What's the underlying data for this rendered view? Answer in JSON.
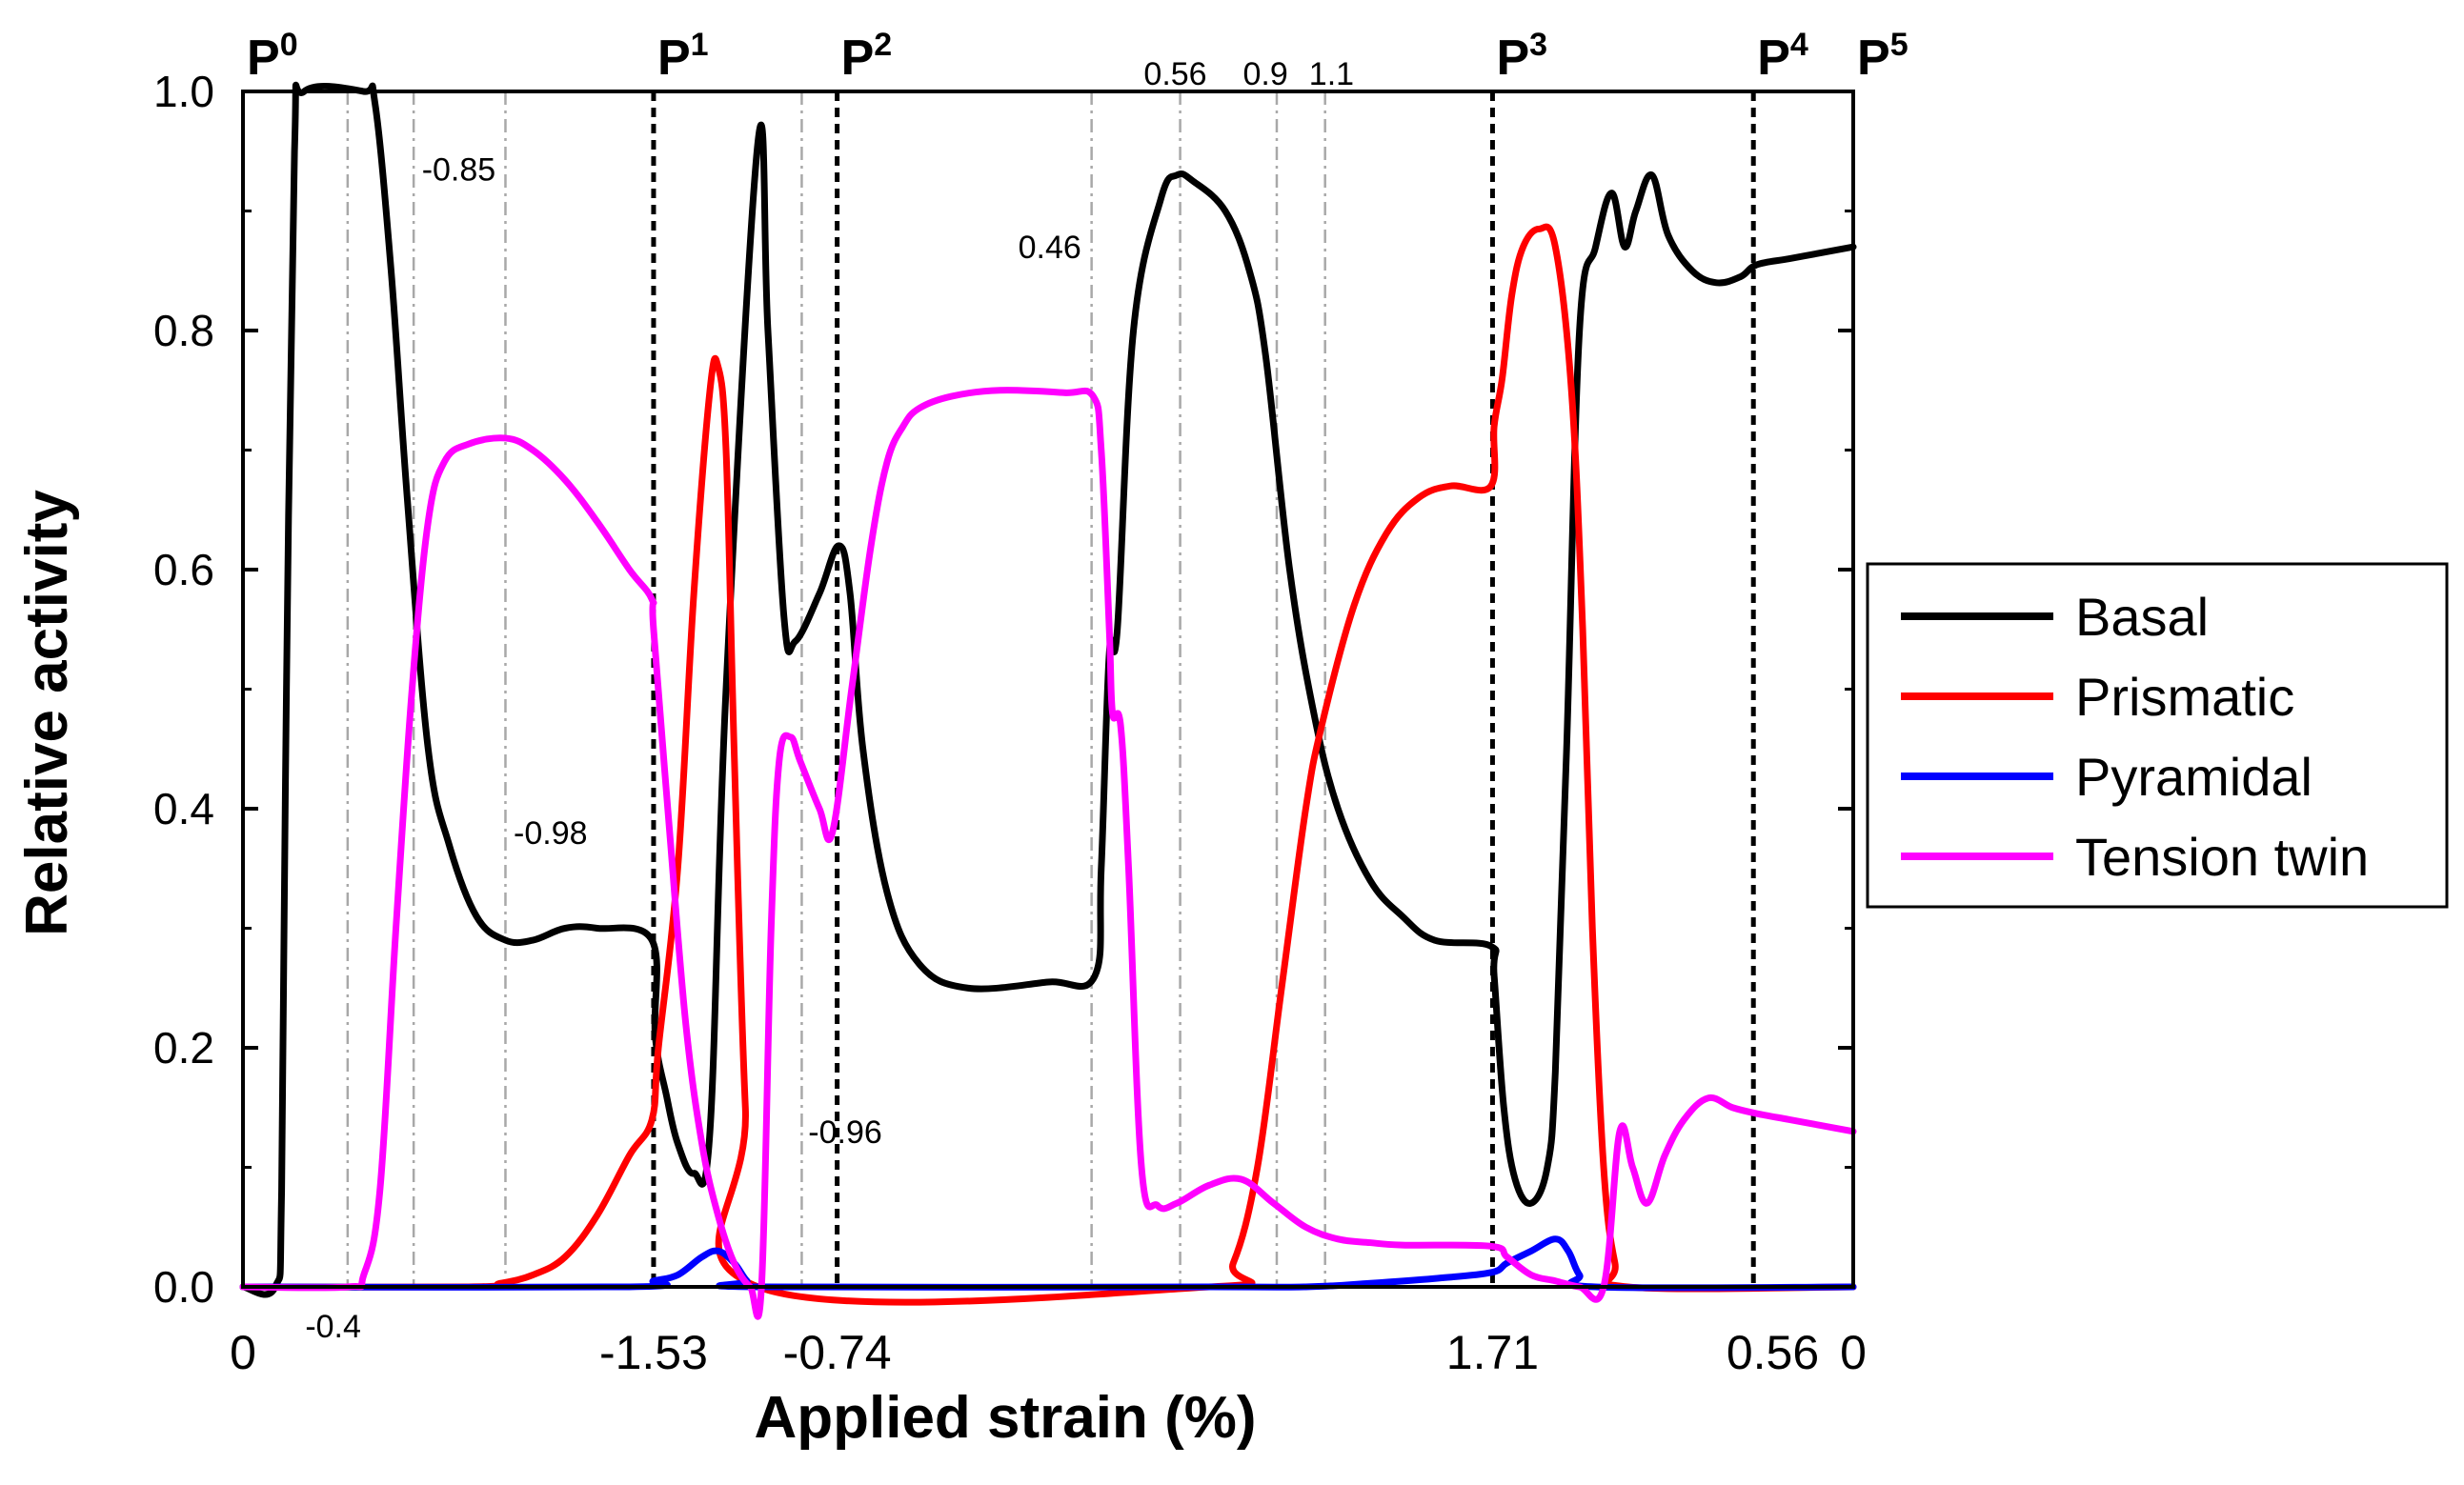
{
  "chart_data": {
    "type": "line",
    "title": "",
    "xlabel": "Applied strain (%)",
    "ylabel": "Relative activity",
    "ylim": [
      0,
      1.0
    ],
    "xlim": [
      0,
      100
    ],
    "x_is_path_progress": true,
    "yticks": [
      "0.0",
      "0.2",
      "0.4",
      "0.6",
      "0.8",
      "1.0"
    ],
    "xtick_labels": [
      {
        "x": 0,
        "label": "0",
        "size": "large"
      },
      {
        "x": 5.6,
        "label": "-0.4",
        "size": "small"
      },
      {
        "x": 25.5,
        "label": "-1.53",
        "size": "large"
      },
      {
        "x": 36.9,
        "label": "-0.74",
        "size": "large"
      },
      {
        "x": 77.6,
        "label": "1.71",
        "size": "large"
      },
      {
        "x": 95.0,
        "label": "0.56",
        "size": "large"
      },
      {
        "x": 100,
        "label": "0",
        "size": "large"
      }
    ],
    "markers": [
      {
        "x": 0,
        "base": "P",
        "sup": "0",
        "line": false
      },
      {
        "x": 25.5,
        "base": "P",
        "sup": "1",
        "line": true
      },
      {
        "x": 36.9,
        "base": "P",
        "sup": "2",
        "line": true
      },
      {
        "x": 77.6,
        "base": "P",
        "sup": "3",
        "line": true
      },
      {
        "x": 93.8,
        "base": "P",
        "sup": "4",
        "line": true
      },
      {
        "x": 100,
        "base": "P",
        "sup": "5",
        "line": false
      }
    ],
    "reference_lines": [
      6.5,
      10.6,
      16.3,
      34.7,
      52.7,
      58.2,
      64.2,
      67.2
    ],
    "annotations": [
      {
        "text": "-0.85",
        "x": 13.4,
        "y": 0.935
      },
      {
        "text": "-0.98",
        "x": 19.1,
        "y": 0.38
      },
      {
        "text": "-0.96",
        "x": 37.4,
        "y": 0.13
      },
      {
        "text": "0.46",
        "x": 50.1,
        "y": 0.87
      },
      {
        "text": "0.56",
        "x": 57.9,
        "y": 1.015
      },
      {
        "text": "0.9",
        "x": 63.5,
        "y": 1.015
      },
      {
        "text": "1.1",
        "x": 67.6,
        "y": 1.015
      }
    ],
    "legend_position": "right",
    "series": [
      {
        "name": "Basal",
        "color": "#000000",
        "points": [
          [
            0,
            0
          ],
          [
            2,
            0
          ],
          [
            2.4,
            0.08
          ],
          [
            2.7,
            0.5
          ],
          [
            3.2,
            0.95
          ],
          [
            3.8,
            1.0
          ],
          [
            7.5,
            1.0
          ],
          [
            8.2,
            0.99
          ],
          [
            9.2,
            0.85
          ],
          [
            10.2,
            0.66
          ],
          [
            11.5,
            0.45
          ],
          [
            12.8,
            0.37
          ],
          [
            14.5,
            0.31
          ],
          [
            16.3,
            0.29
          ],
          [
            18,
            0.29
          ],
          [
            20,
            0.3
          ],
          [
            22,
            0.3
          ],
          [
            25.4,
            0.29
          ],
          [
            25.6,
            0.21
          ],
          [
            26.3,
            0.16
          ],
          [
            27,
            0.12
          ],
          [
            28,
            0.095
          ],
          [
            29,
            0.13
          ],
          [
            30,
            0.5
          ],
          [
            32,
            0.96
          ],
          [
            32.6,
            0.8
          ],
          [
            33.6,
            0.56
          ],
          [
            34.3,
            0.54
          ],
          [
            35.8,
            0.58
          ],
          [
            37,
            0.62
          ],
          [
            37.7,
            0.58
          ],
          [
            38.5,
            0.45
          ],
          [
            40,
            0.33
          ],
          [
            42,
            0.27
          ],
          [
            45,
            0.25
          ],
          [
            50,
            0.255
          ],
          [
            52.9,
            0.26
          ],
          [
            53.3,
            0.35
          ],
          [
            53.8,
            0.53
          ],
          [
            54.3,
            0.55
          ],
          [
            55.3,
            0.8
          ],
          [
            57,
            0.91
          ],
          [
            58,
            0.93
          ],
          [
            59,
            0.925
          ],
          [
            61,
            0.9
          ],
          [
            62.5,
            0.85
          ],
          [
            63.5,
            0.78
          ],
          [
            65,
            0.6
          ],
          [
            66.5,
            0.48
          ],
          [
            68,
            0.4
          ],
          [
            70,
            0.34
          ],
          [
            72,
            0.31
          ],
          [
            74,
            0.29
          ],
          [
            77.5,
            0.285
          ],
          [
            77.7,
            0.26
          ],
          [
            78.3,
            0.15
          ],
          [
            79,
            0.09
          ],
          [
            80,
            0.07
          ],
          [
            81,
            0.1
          ],
          [
            81.5,
            0.18
          ],
          [
            82.2,
            0.45
          ],
          [
            83,
            0.8
          ],
          [
            84,
            0.87
          ],
          [
            85,
            0.915
          ],
          [
            85.8,
            0.87
          ],
          [
            86.5,
            0.9
          ],
          [
            87.5,
            0.93
          ],
          [
            88.5,
            0.88
          ],
          [
            90,
            0.85
          ],
          [
            91.5,
            0.84
          ],
          [
            93,
            0.845
          ],
          [
            94,
            0.855
          ],
          [
            96,
            0.86
          ],
          [
            98,
            0.865
          ],
          [
            100,
            0.87
          ]
        ]
      },
      {
        "name": "Prismatic",
        "color": "#ff0000",
        "points": [
          [
            0,
            0
          ],
          [
            14,
            0
          ],
          [
            16,
            0.003
          ],
          [
            18,
            0.01
          ],
          [
            20,
            0.025
          ],
          [
            22,
            0.06
          ],
          [
            24,
            0.11
          ],
          [
            25.4,
            0.14
          ],
          [
            25.8,
            0.2
          ],
          [
            27,
            0.35
          ],
          [
            28,
            0.58
          ],
          [
            29,
            0.75
          ],
          [
            29.5,
            0.77
          ],
          [
            30,
            0.7
          ],
          [
            30.5,
            0.45
          ],
          [
            31.2,
            0.15
          ],
          [
            32,
            0
          ],
          [
            60,
            0
          ],
          [
            61.5,
            0.02
          ],
          [
            63,
            0.1
          ],
          [
            64.5,
            0.25
          ],
          [
            66,
            0.4
          ],
          [
            67,
            0.47
          ],
          [
            69,
            0.57
          ],
          [
            71,
            0.63
          ],
          [
            73,
            0.66
          ],
          [
            75,
            0.67
          ],
          [
            77.5,
            0.67
          ],
          [
            77.7,
            0.72
          ],
          [
            78.2,
            0.76
          ],
          [
            78.8,
            0.83
          ],
          [
            79.5,
            0.87
          ],
          [
            80.5,
            0.885
          ],
          [
            81.5,
            0.87
          ],
          [
            82.5,
            0.75
          ],
          [
            83.2,
            0.55
          ],
          [
            83.8,
            0.3
          ],
          [
            84.5,
            0.1
          ],
          [
            85.2,
            0.02
          ],
          [
            86,
            0
          ],
          [
            100,
            0
          ]
        ]
      },
      {
        "name": "Pyramidal",
        "color": "#0000ff",
        "points": [
          [
            0,
            0
          ],
          [
            24,
            0
          ],
          [
            25.5,
            0.005
          ],
          [
            27,
            0.01
          ],
          [
            28.5,
            0.025
          ],
          [
            29.5,
            0.03
          ],
          [
            30.5,
            0.02
          ],
          [
            31.3,
            0.005
          ],
          [
            32,
            0
          ],
          [
            60,
            0
          ],
          [
            66,
            0
          ],
          [
            70,
            0.003
          ],
          [
            74,
            0.007
          ],
          [
            77.5,
            0.012
          ],
          [
            78.5,
            0.02
          ],
          [
            80,
            0.03
          ],
          [
            81.5,
            0.04
          ],
          [
            82.3,
            0.03
          ],
          [
            83,
            0.01
          ],
          [
            84,
            0
          ],
          [
            100,
            0
          ]
        ]
      },
      {
        "name": "Tension twin",
        "color": "#ff00ff",
        "points": [
          [
            0,
            0
          ],
          [
            6.5,
            0
          ],
          [
            7.5,
            0.01
          ],
          [
            8.5,
            0.08
          ],
          [
            9.5,
            0.3
          ],
          [
            10.5,
            0.5
          ],
          [
            11.5,
            0.64
          ],
          [
            12.5,
            0.69
          ],
          [
            14,
            0.705
          ],
          [
            16.3,
            0.71
          ],
          [
            18,
            0.7
          ],
          [
            20,
            0.675
          ],
          [
            22,
            0.64
          ],
          [
            24,
            0.6
          ],
          [
            25.4,
            0.575
          ],
          [
            25.5,
            0.55
          ],
          [
            26.5,
            0.38
          ],
          [
            27.5,
            0.22
          ],
          [
            28.5,
            0.12
          ],
          [
            29.5,
            0.06
          ],
          [
            30.5,
            0.02
          ],
          [
            31.5,
            0
          ],
          [
            32.2,
            0
          ],
          [
            32.8,
            0.3
          ],
          [
            33.3,
            0.44
          ],
          [
            34,
            0.46
          ],
          [
            34.6,
            0.44
          ],
          [
            35.8,
            0.4
          ],
          [
            36.6,
            0.38
          ],
          [
            37.8,
            0.5
          ],
          [
            39,
            0.62
          ],
          [
            40,
            0.69
          ],
          [
            41,
            0.72
          ],
          [
            42,
            0.735
          ],
          [
            44,
            0.745
          ],
          [
            47,
            0.75
          ],
          [
            51,
            0.748
          ],
          [
            52.8,
            0.745
          ],
          [
            53.3,
            0.7
          ],
          [
            53.8,
            0.55
          ],
          [
            54,
            0.48
          ],
          [
            54.5,
            0.47
          ],
          [
            55,
            0.35
          ],
          [
            55.8,
            0.1
          ],
          [
            56.8,
            0.068
          ],
          [
            58,
            0.07
          ],
          [
            60,
            0.085
          ],
          [
            62,
            0.09
          ],
          [
            64,
            0.07
          ],
          [
            66,
            0.05
          ],
          [
            68,
            0.04
          ],
          [
            70,
            0.037
          ],
          [
            72,
            0.035
          ],
          [
            77.5,
            0.034
          ],
          [
            78.5,
            0.025
          ],
          [
            80,
            0.01
          ],
          [
            81.5,
            0.005
          ],
          [
            83,
            0
          ],
          [
            84.5,
            0
          ],
          [
            85.5,
            0.13
          ],
          [
            86.3,
            0.1
          ],
          [
            87.2,
            0.07
          ],
          [
            88.3,
            0.11
          ],
          [
            89.5,
            0.14
          ],
          [
            91,
            0.158
          ],
          [
            92.5,
            0.15
          ],
          [
            94,
            0.145
          ],
          [
            96,
            0.14
          ],
          [
            98,
            0.135
          ],
          [
            100,
            0.13
          ]
        ]
      }
    ]
  }
}
